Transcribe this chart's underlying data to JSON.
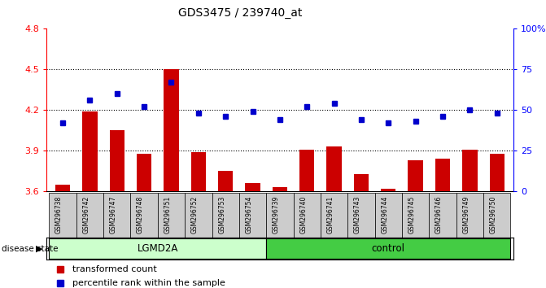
{
  "title": "GDS3475 / 239740_at",
  "samples": [
    "GSM296738",
    "GSM296742",
    "GSM296747",
    "GSM296748",
    "GSM296751",
    "GSM296752",
    "GSM296753",
    "GSM296754",
    "GSM296739",
    "GSM296740",
    "GSM296741",
    "GSM296743",
    "GSM296744",
    "GSM296745",
    "GSM296746",
    "GSM296749",
    "GSM296750"
  ],
  "bar_values": [
    3.65,
    4.19,
    4.05,
    3.88,
    4.5,
    3.89,
    3.75,
    3.66,
    3.63,
    3.91,
    3.93,
    3.73,
    3.62,
    3.83,
    3.84,
    3.91,
    3.88
  ],
  "dot_values": [
    42,
    56,
    60,
    52,
    67,
    48,
    46,
    49,
    44,
    52,
    54,
    44,
    42,
    43,
    46,
    50,
    48
  ],
  "ylim_left": [
    3.6,
    4.8
  ],
  "ylim_right": [
    0,
    100
  ],
  "yticks_left": [
    3.6,
    3.9,
    4.2,
    4.5,
    4.8
  ],
  "yticks_right": [
    0,
    25,
    50,
    75,
    100
  ],
  "ytick_labels_right": [
    "0",
    "25",
    "50",
    "75",
    "100%"
  ],
  "group1_label": "LGMD2A",
  "group2_label": "control",
  "group1_count": 8,
  "group2_count": 9,
  "disease_state_label": "disease state",
  "legend1": "transformed count",
  "legend2": "percentile rank within the sample",
  "bar_color": "#cc0000",
  "dot_color": "#0000cc",
  "group1_color": "#ccffcc",
  "group2_color": "#44cc44",
  "xticklabel_bg": "#cccccc"
}
